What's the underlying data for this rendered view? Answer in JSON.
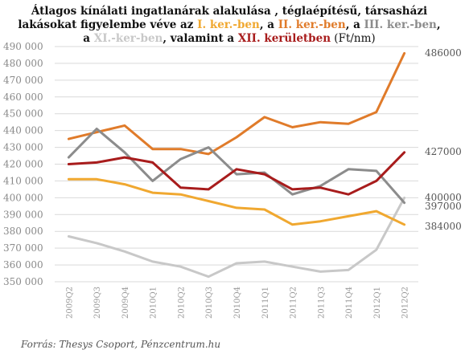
{
  "title": {
    "part1": "Átlagos kínálati ingatlanárak alakulása , téglaépítésű, társasházi lakásokat figyelembe véve az ",
    "d1": "I. ker.-ben",
    "sep1": ", a ",
    "d2": "II. ker.-ben",
    "sep2": ", a ",
    "d3": "III. ker.-ben",
    "sep3": ", a ",
    "d11": "XI.-ker-ben",
    "sep4": ", valamint a ",
    "d12": "XII. kerületben",
    "unit": " (Ft/nm)"
  },
  "source": "Forrás: Thesys Csoport, Pénzcentrum.hu",
  "colors": {
    "I": "#f0a830",
    "II": "#e07b2a",
    "III": "#8c8c8c",
    "XI": "#c8c8c8",
    "XII": "#a81c1c"
  },
  "chart_data": {
    "type": "line",
    "x": [
      "2009Q2",
      "2009Q3",
      "2009Q4",
      "2010Q1",
      "2010Q2",
      "2010Q3",
      "2010Q4",
      "2011Q1",
      "2011Q2",
      "2011Q3",
      "2011Q4",
      "2012Q1",
      "2012Q2"
    ],
    "ylim": [
      350000,
      490000
    ],
    "yticks": [
      "350 000",
      "360 000",
      "370 000",
      "380 000",
      "390 000",
      "400 000",
      "410 000",
      "420 000",
      "430 000",
      "440 000",
      "450 000",
      "460 000",
      "470 000",
      "480 000",
      "490 000"
    ],
    "grid": true,
    "series": [
      {
        "name": "I. ker.",
        "color": "#f0a830",
        "values": [
          411000,
          411000,
          408000,
          403000,
          402000,
          398000,
          394000,
          393000,
          384000,
          386000,
          389000,
          392000,
          384000
        ],
        "end_label": "384000"
      },
      {
        "name": "II. ker.",
        "color": "#e07b2a",
        "values": [
          435000,
          439000,
          443000,
          429000,
          429000,
          426000,
          436000,
          448000,
          442000,
          445000,
          444000,
          451000,
          486000
        ],
        "end_label": "486000"
      },
      {
        "name": "III. ker.",
        "color": "#8c8c8c",
        "values": [
          424000,
          441000,
          427000,
          410000,
          423000,
          430000,
          414000,
          415000,
          402000,
          407000,
          417000,
          416000,
          397000
        ],
        "end_label": "397000"
      },
      {
        "name": "XI. ker.",
        "color": "#c8c8c8",
        "values": [
          377000,
          373000,
          368000,
          362000,
          359000,
          353000,
          361000,
          362000,
          359000,
          356000,
          357000,
          369000,
          400000
        ],
        "end_label": "400000"
      },
      {
        "name": "XII. ker.",
        "color": "#a81c1c",
        "values": [
          420000,
          421000,
          424000,
          421000,
          406000,
          405000,
          417000,
          414000,
          405000,
          406000,
          402000,
          410000,
          427000
        ],
        "end_label": "427000"
      }
    ]
  }
}
